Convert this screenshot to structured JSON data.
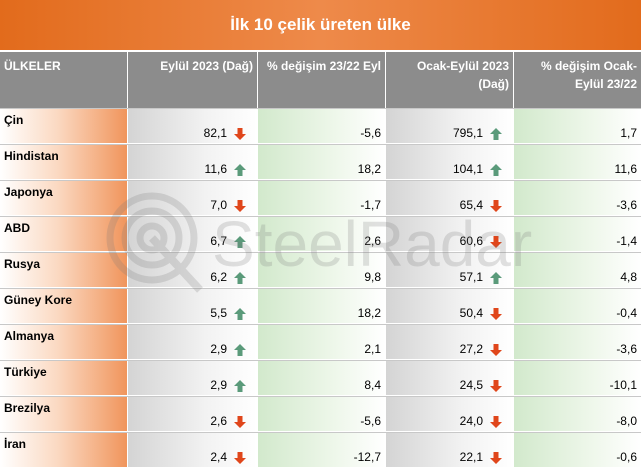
{
  "title": "İlk 10 çelik üreten ülke",
  "colors": {
    "title_bg": "#e26b1c",
    "header_bg": "#8c8c8c",
    "arrow_up": "#5a9a7a",
    "arrow_down": "#e0461b"
  },
  "watermark": "SteelRadar",
  "headers": {
    "country": "ÜLKELER",
    "sep2023": "Eylül 2023 (Dağ)",
    "change_sep": "% değişim 23/22 Eyl",
    "jan_sep2023": "Ocak-Eylül 2023 (Dağ)",
    "change_jan_sep": "% değişim Ocak-Eylül 23/22"
  },
  "chart_data": {
    "type": "table",
    "title": "İlk 10 çelik üreten ülke",
    "columns": [
      "ÜLKELER",
      "Eylül 2023 (Dağ)",
      "% değişim 23/22 Eyl",
      "Ocak-Eylül 2023 (Dağ)",
      "% değişim Ocak-Eylül 23/22"
    ],
    "rows": [
      {
        "country": "Çin",
        "sep2023": "82,1",
        "sep_trend": "down",
        "change_sep": "-5,6",
        "jan_sep2023": "795,1",
        "jan_sep_trend": "up",
        "change_jan_sep": "1,7"
      },
      {
        "country": "Hindistan",
        "sep2023": "11,6",
        "sep_trend": "up",
        "change_sep": "18,2",
        "jan_sep2023": "104,1",
        "jan_sep_trend": "up",
        "change_jan_sep": "11,6"
      },
      {
        "country": "Japonya",
        "sep2023": "7,0",
        "sep_trend": "down",
        "change_sep": "-1,7",
        "jan_sep2023": "65,4",
        "jan_sep_trend": "down",
        "change_jan_sep": "-3,6"
      },
      {
        "country": "ABD",
        "sep2023": "6,7",
        "sep_trend": "up",
        "change_sep": "2,6",
        "jan_sep2023": "60,6",
        "jan_sep_trend": "down",
        "change_jan_sep": "-1,4"
      },
      {
        "country": "Rusya",
        "sep2023": "6,2",
        "sep_trend": "up",
        "change_sep": "9,8",
        "jan_sep2023": "57,1",
        "jan_sep_trend": "up",
        "change_jan_sep": "4,8"
      },
      {
        "country": "Güney Kore",
        "sep2023": "5,5",
        "sep_trend": "up",
        "change_sep": "18,2",
        "jan_sep2023": "50,4",
        "jan_sep_trend": "down",
        "change_jan_sep": "-0,4"
      },
      {
        "country": "Almanya",
        "sep2023": "2,9",
        "sep_trend": "up",
        "change_sep": "2,1",
        "jan_sep2023": "27,2",
        "jan_sep_trend": "down",
        "change_jan_sep": "-3,6"
      },
      {
        "country": "Türkiye",
        "sep2023": "2,9",
        "sep_trend": "up",
        "change_sep": "8,4",
        "jan_sep2023": "24,5",
        "jan_sep_trend": "down",
        "change_jan_sep": "-10,1"
      },
      {
        "country": "Brezilya",
        "sep2023": "2,6",
        "sep_trend": "down",
        "change_sep": "-5,6",
        "jan_sep2023": "24,0",
        "jan_sep_trend": "down",
        "change_jan_sep": "-8,0"
      },
      {
        "country": "İran",
        "sep2023": "2,4",
        "sep_trend": "down",
        "change_sep": "-12,7",
        "jan_sep2023": "22,1",
        "jan_sep_trend": "down",
        "change_jan_sep": "-0,6"
      }
    ]
  }
}
